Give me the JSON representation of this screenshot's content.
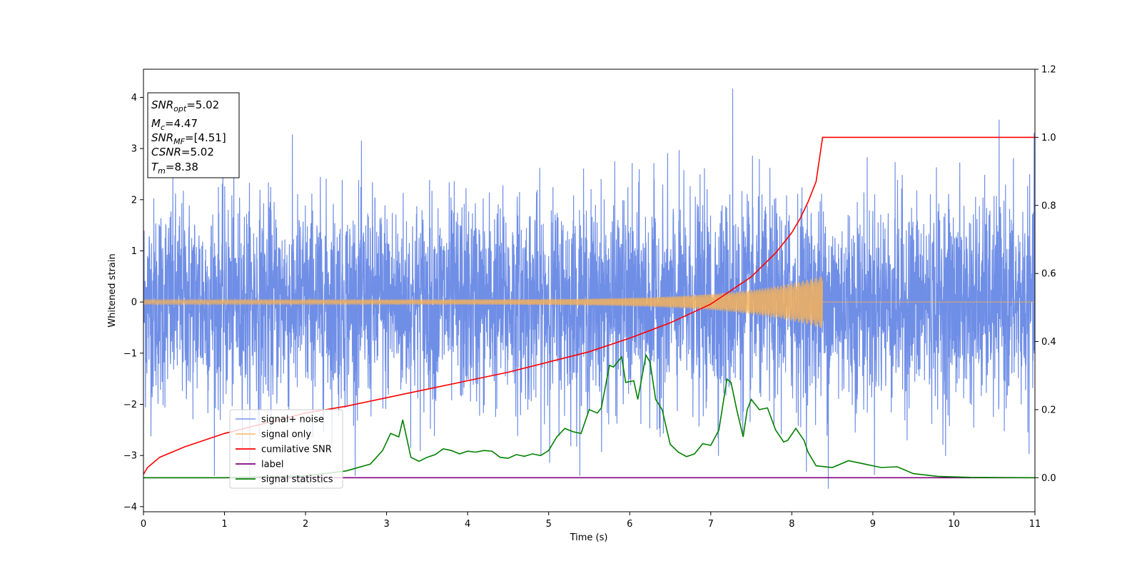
{
  "chart_data": {
    "type": "line",
    "xlabel": "Time (s)",
    "ylabel_left": "Whitened strain",
    "ylabel_right": "",
    "xlim": [
      0,
      11
    ],
    "ylim_left": [
      -4.1,
      4.55
    ],
    "ylim_right": [
      -0.1,
      1.2
    ],
    "x_ticks": [
      "0",
      "1",
      "2",
      "3",
      "4",
      "5",
      "6",
      "7",
      "8",
      "9",
      "10",
      "11"
    ],
    "y_left_ticks": [
      "4",
      "3",
      "2",
      "1",
      "0",
      "−1",
      "−2",
      "−3",
      "−4"
    ],
    "y_right_ticks": [
      "1.2",
      "1.0",
      "0.8",
      "0.6",
      "0.4",
      "0.2",
      "0.0"
    ],
    "grid": false,
    "legend": {
      "placement": "lower-left",
      "entries": [
        "signal+ noise",
        "signal only",
        "cumilative SNR",
        "label",
        "signal statistics"
      ]
    },
    "info_box": {
      "placement": "top-left",
      "lines": [
        {
          "sym": "SNR",
          "sub": "opt",
          "val": "=5.02"
        },
        {
          "sym": "M",
          "sub": "c",
          "val": "=4.47"
        },
        {
          "sym": "SNR",
          "sub": "MF",
          "val": "=[4.51]"
        },
        {
          "sym": "CSNR",
          "sub": "",
          "val": "=5.02"
        },
        {
          "sym": "T",
          "sub": "m",
          "val": "=8.38"
        }
      ]
    },
    "series": [
      {
        "name": "signal+ noise",
        "axis": "left",
        "color": "#6f8ee6",
        "kind": "noise",
        "x_range": [
          0,
          11
        ],
        "sigma": 1.0,
        "peak": 4.17,
        "trough": -3.65
      },
      {
        "name": "signal only",
        "axis": "left",
        "color": "#f5b25a",
        "kind": "chirp",
        "x_range": [
          0,
          8.38
        ],
        "start_amplitude": 0.05,
        "end_amplitude": 0.52
      },
      {
        "name": "cumilative SNR",
        "axis": "right",
        "color": "#ff0000",
        "x": [
          0,
          0.05,
          0.2,
          0.5,
          1,
          1.5,
          2,
          2.5,
          3,
          3.5,
          4,
          4.5,
          5,
          5.5,
          6,
          6.5,
          7,
          7.5,
          7.8,
          8,
          8.1,
          8.2,
          8.3,
          8.38,
          11
        ],
        "values": [
          0.01,
          0.03,
          0.06,
          0.09,
          0.13,
          0.16,
          0.19,
          0.21,
          0.235,
          0.26,
          0.285,
          0.31,
          0.34,
          0.37,
          0.41,
          0.455,
          0.51,
          0.59,
          0.66,
          0.72,
          0.76,
          0.81,
          0.87,
          1.0,
          1.0
        ]
      },
      {
        "name": "label",
        "axis": "right",
        "color": "#800080",
        "x": [
          0,
          11
        ],
        "values": [
          0,
          0
        ]
      },
      {
        "name": "signal statistics",
        "axis": "right",
        "color": "#008000",
        "x": [
          0,
          1,
          2,
          2.5,
          2.8,
          2.95,
          3.05,
          3.15,
          3.2,
          3.3,
          3.4,
          3.5,
          3.6,
          3.7,
          3.8,
          3.9,
          4.0,
          4.1,
          4.2,
          4.3,
          4.4,
          4.5,
          4.6,
          4.7,
          4.8,
          4.9,
          5.0,
          5.1,
          5.2,
          5.3,
          5.4,
          5.5,
          5.6,
          5.65,
          5.75,
          5.8,
          5.9,
          5.95,
          6.05,
          6.1,
          6.2,
          6.25,
          6.32,
          6.4,
          6.5,
          6.6,
          6.7,
          6.8,
          6.9,
          7.0,
          7.1,
          7.2,
          7.25,
          7.32,
          7.4,
          7.45,
          7.5,
          7.6,
          7.7,
          7.8,
          7.9,
          7.95,
          8.05,
          8.15,
          8.2,
          8.3,
          8.5,
          8.7,
          8.9,
          9.1,
          9.3,
          9.5,
          9.8,
          10.2,
          11
        ],
        "values": [
          0,
          0,
          0.005,
          0.02,
          0.04,
          0.08,
          0.13,
          0.12,
          0.17,
          0.06,
          0.048,
          0.06,
          0.068,
          0.085,
          0.08,
          0.07,
          0.078,
          0.075,
          0.08,
          0.078,
          0.06,
          0.057,
          0.068,
          0.063,
          0.07,
          0.065,
          0.08,
          0.12,
          0.145,
          0.135,
          0.13,
          0.2,
          0.19,
          0.205,
          0.33,
          0.325,
          0.355,
          0.28,
          0.285,
          0.23,
          0.36,
          0.34,
          0.23,
          0.2,
          0.098,
          0.075,
          0.062,
          0.07,
          0.1,
          0.095,
          0.14,
          0.29,
          0.28,
          0.2,
          0.12,
          0.2,
          0.23,
          0.2,
          0.205,
          0.14,
          0.105,
          0.11,
          0.145,
          0.11,
          0.075,
          0.035,
          0.03,
          0.05,
          0.04,
          0.03,
          0.032,
          0.012,
          0.004,
          0.001,
          0
        ]
      }
    ]
  }
}
